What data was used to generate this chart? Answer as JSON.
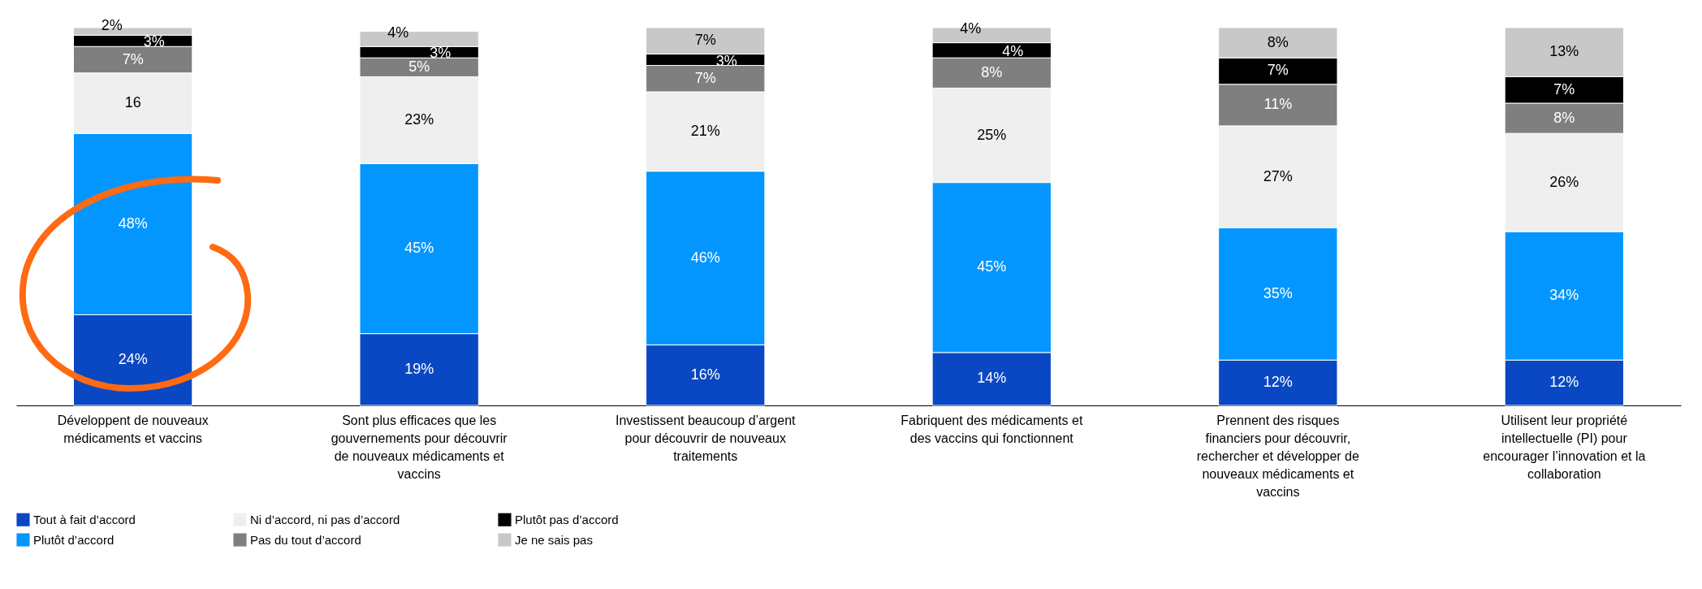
{
  "chart_data": {
    "type": "bar",
    "stacked": true,
    "legend": "bottom left",
    "categories": [
      "Développent de nouveaux médicaments et vaccins",
      "Sont plus efficaces que les gouvernements pour découvrir de nouveaux médicaments et vaccins",
      "Investissent beaucoup d’argent pour découvrir de nouveaux traitements",
      "Fabriquent des médicaments et des vaccins qui fonctionnent",
      "Prennent des risques financiers pour découvrir, rechercher et développer de nouveaux médicaments et vaccins",
      "Utilisent leur propriété intellectuelle (PI) pour encourager l’innovation et la collaboration"
    ],
    "series": [
      {
        "name": "Tout à fait d’accord",
        "color": "#0a47c2",
        "values": [
          24,
          19,
          16,
          14,
          12,
          12
        ],
        "value_labels": [
          "24%",
          "19%",
          "16%",
          "14%",
          "12%",
          "12%"
        ]
      },
      {
        "name": "Plutôt d’accord",
        "color": "#0496ff",
        "values": [
          48,
          45,
          46,
          45,
          35,
          34
        ],
        "value_labels": [
          "48%",
          "45%",
          "46%",
          "45%",
          "35%",
          "34%"
        ]
      },
      {
        "name": "Ni d’accord, ni pas d’accord",
        "color": "#efefef",
        "values": [
          16,
          23,
          21,
          25,
          27,
          26
        ],
        "value_labels": [
          "16",
          "23%",
          "21%",
          "25%",
          "27%",
          "26%"
        ]
      },
      {
        "name": "Pas du tout d’accord",
        "color": "#7f7f7f",
        "values": [
          7,
          5,
          7,
          8,
          11,
          8
        ],
        "value_labels": [
          "7%",
          "5%",
          "7%",
          "8%",
          "11%",
          "8%"
        ]
      },
      {
        "name": "Plutôt pas d’accord",
        "color": "#000000",
        "values": [
          3,
          3,
          3,
          4,
          7,
          7
        ],
        "value_labels": [
          "3%",
          "3%",
          "3%",
          "4%",
          "7%",
          "7%"
        ]
      },
      {
        "name": "Je ne sais pas",
        "color": "#c8c8c8",
        "values": [
          2,
          4,
          7,
          4,
          8,
          13
        ],
        "value_labels": [
          "2%",
          "4%",
          "7%",
          "4%",
          "8%",
          "13%"
        ]
      }
    ]
  }
}
